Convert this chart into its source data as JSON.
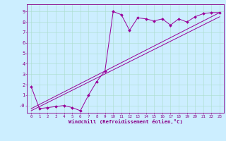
{
  "xlabel": "Windchill (Refroidissement éolien,°C)",
  "bg_color": "#cceeff",
  "line_color": "#990099",
  "grid_color": "#aaddcc",
  "axis_color": "#880088",
  "xlim": [
    -0.5,
    23.5
  ],
  "ylim": [
    -0.7,
    9.7
  ],
  "xticks": [
    0,
    1,
    2,
    3,
    4,
    5,
    6,
    7,
    8,
    9,
    10,
    11,
    12,
    13,
    14,
    15,
    16,
    17,
    18,
    19,
    20,
    21,
    22,
    23
  ],
  "yticks": [
    0,
    1,
    2,
    3,
    4,
    5,
    6,
    7,
    8,
    9
  ],
  "ytick_labels": [
    "-0",
    "1",
    "2",
    "3",
    "4",
    "5",
    "6",
    "7",
    "8",
    "9"
  ],
  "series1_x": [
    0,
    1,
    2,
    3,
    4,
    5,
    6,
    7,
    8,
    9,
    10,
    11,
    12,
    13,
    14,
    15,
    16,
    17,
    18,
    19,
    20,
    21,
    22,
    23
  ],
  "series1_y": [
    1.8,
    -0.3,
    -0.2,
    -0.1,
    0.0,
    -0.2,
    -0.5,
    1.0,
    2.3,
    3.3,
    9.0,
    8.7,
    7.2,
    8.4,
    8.3,
    8.1,
    8.3,
    7.7,
    8.3,
    8.0,
    8.5,
    8.8,
    8.9,
    8.9
  ],
  "series2_x": [
    0,
    23
  ],
  "series2_y": [
    -0.3,
    8.9
  ],
  "series3_x": [
    0,
    23
  ],
  "series3_y": [
    -0.5,
    8.5
  ],
  "xtick_fontsize": 4.2,
  "ytick_fontsize": 5.0,
  "xlabel_fontsize": 5.2,
  "linewidth": 0.7,
  "markersize": 2.0
}
